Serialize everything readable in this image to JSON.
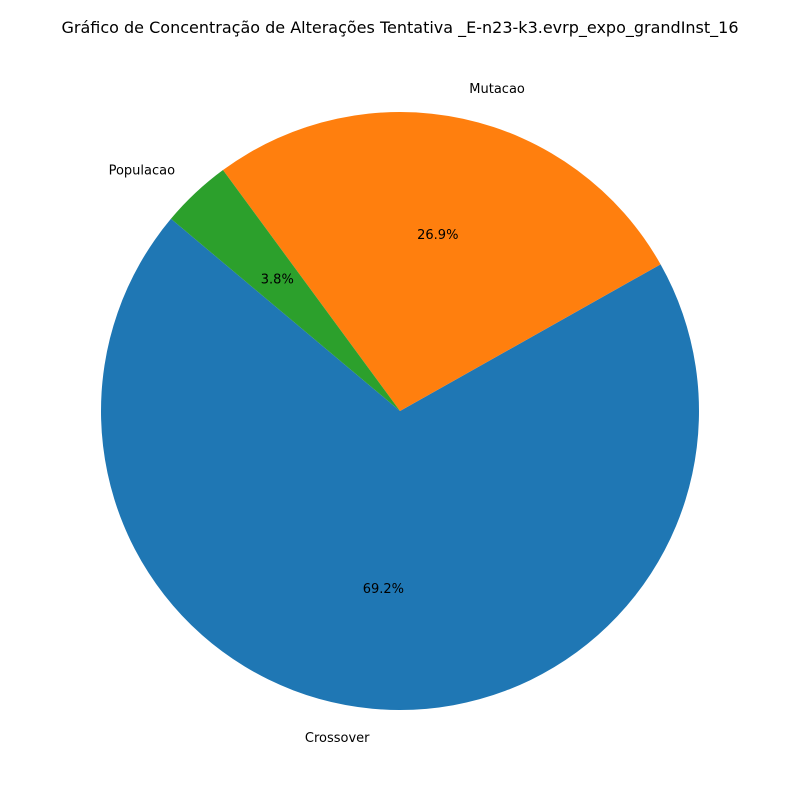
{
  "chart_data": {
    "type": "pie",
    "title": "Gráfico de Concentração de Alterações Tentativa _E-n23-k3.evrp_expo_grandInst_16",
    "slices": [
      {
        "label": "Crossover",
        "value": 69.2,
        "pct_label": "69.2%",
        "color": "#1f77b4"
      },
      {
        "label": "Mutacao",
        "value": 26.9,
        "pct_label": "26.9%",
        "color": "#ff7f0e"
      },
      {
        "label": "Populacao",
        "value": 3.8,
        "pct_label": "3.8%",
        "color": "#2ca02c"
      }
    ],
    "start_angle_deg": 140,
    "direction": "counterclockwise"
  }
}
